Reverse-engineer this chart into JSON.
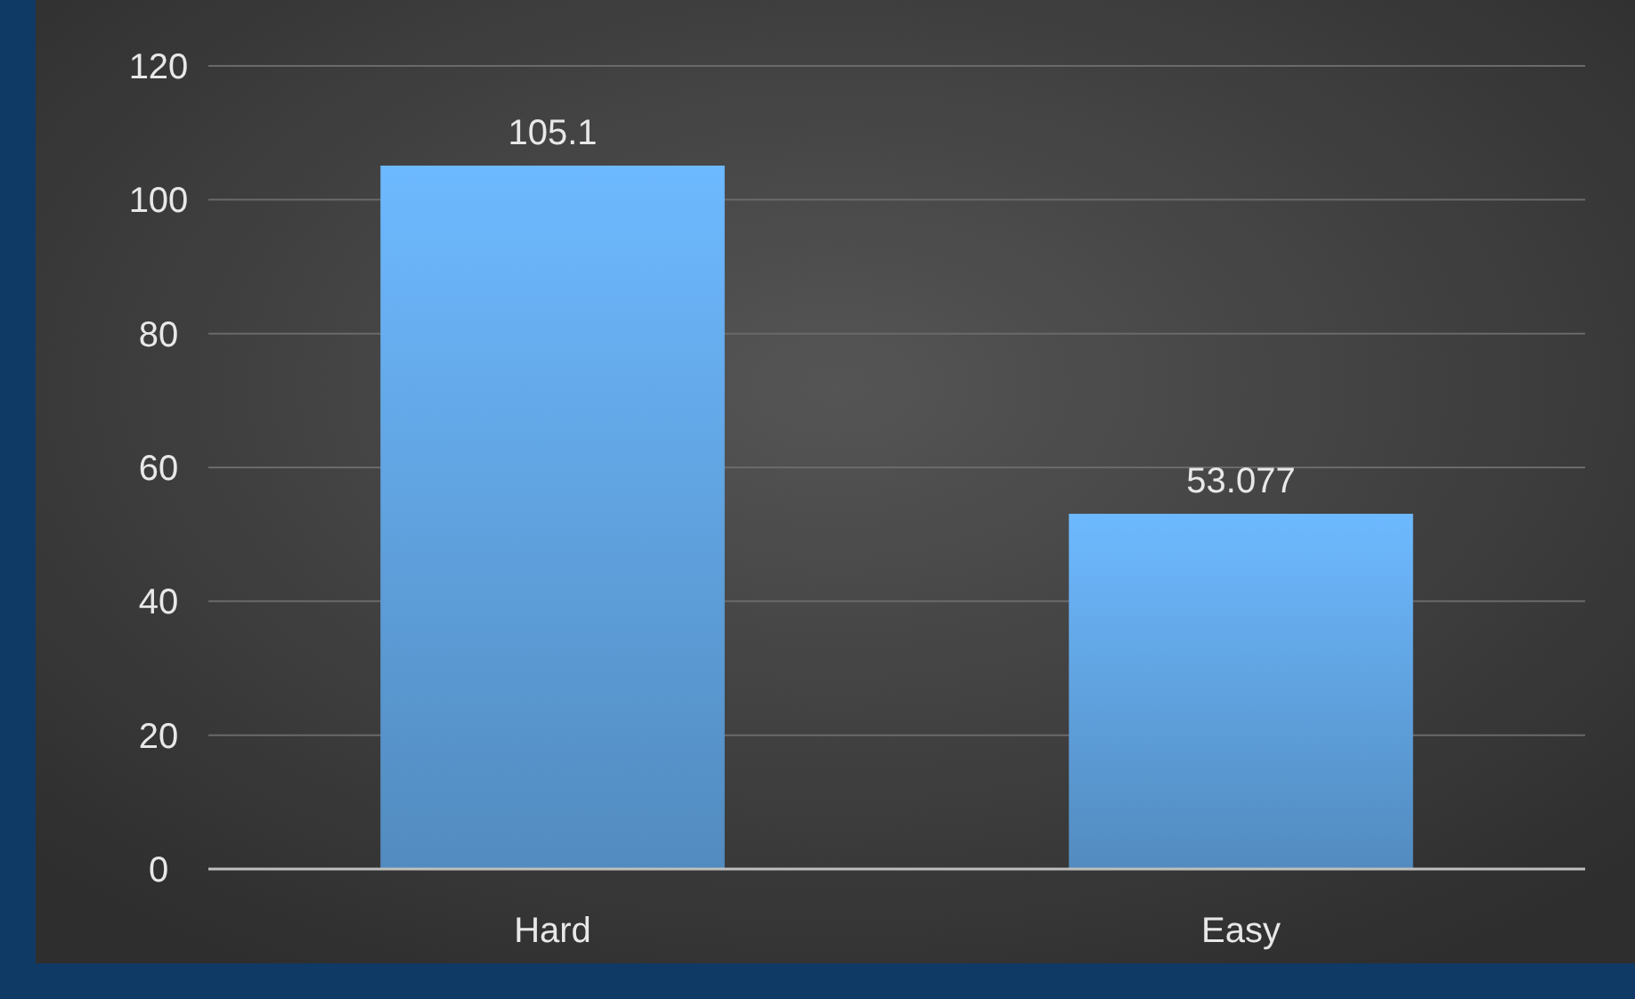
{
  "chart_data": {
    "type": "bar",
    "categories": [
      "Hard",
      "Easy"
    ],
    "values": [
      105.1,
      53.077
    ],
    "color": "#5b9bd5",
    "ylim": [
      0,
      120
    ],
    "yticks": [
      0,
      20,
      40,
      60,
      80,
      100,
      120
    ],
    "grid": "y",
    "data_labels": true
  }
}
